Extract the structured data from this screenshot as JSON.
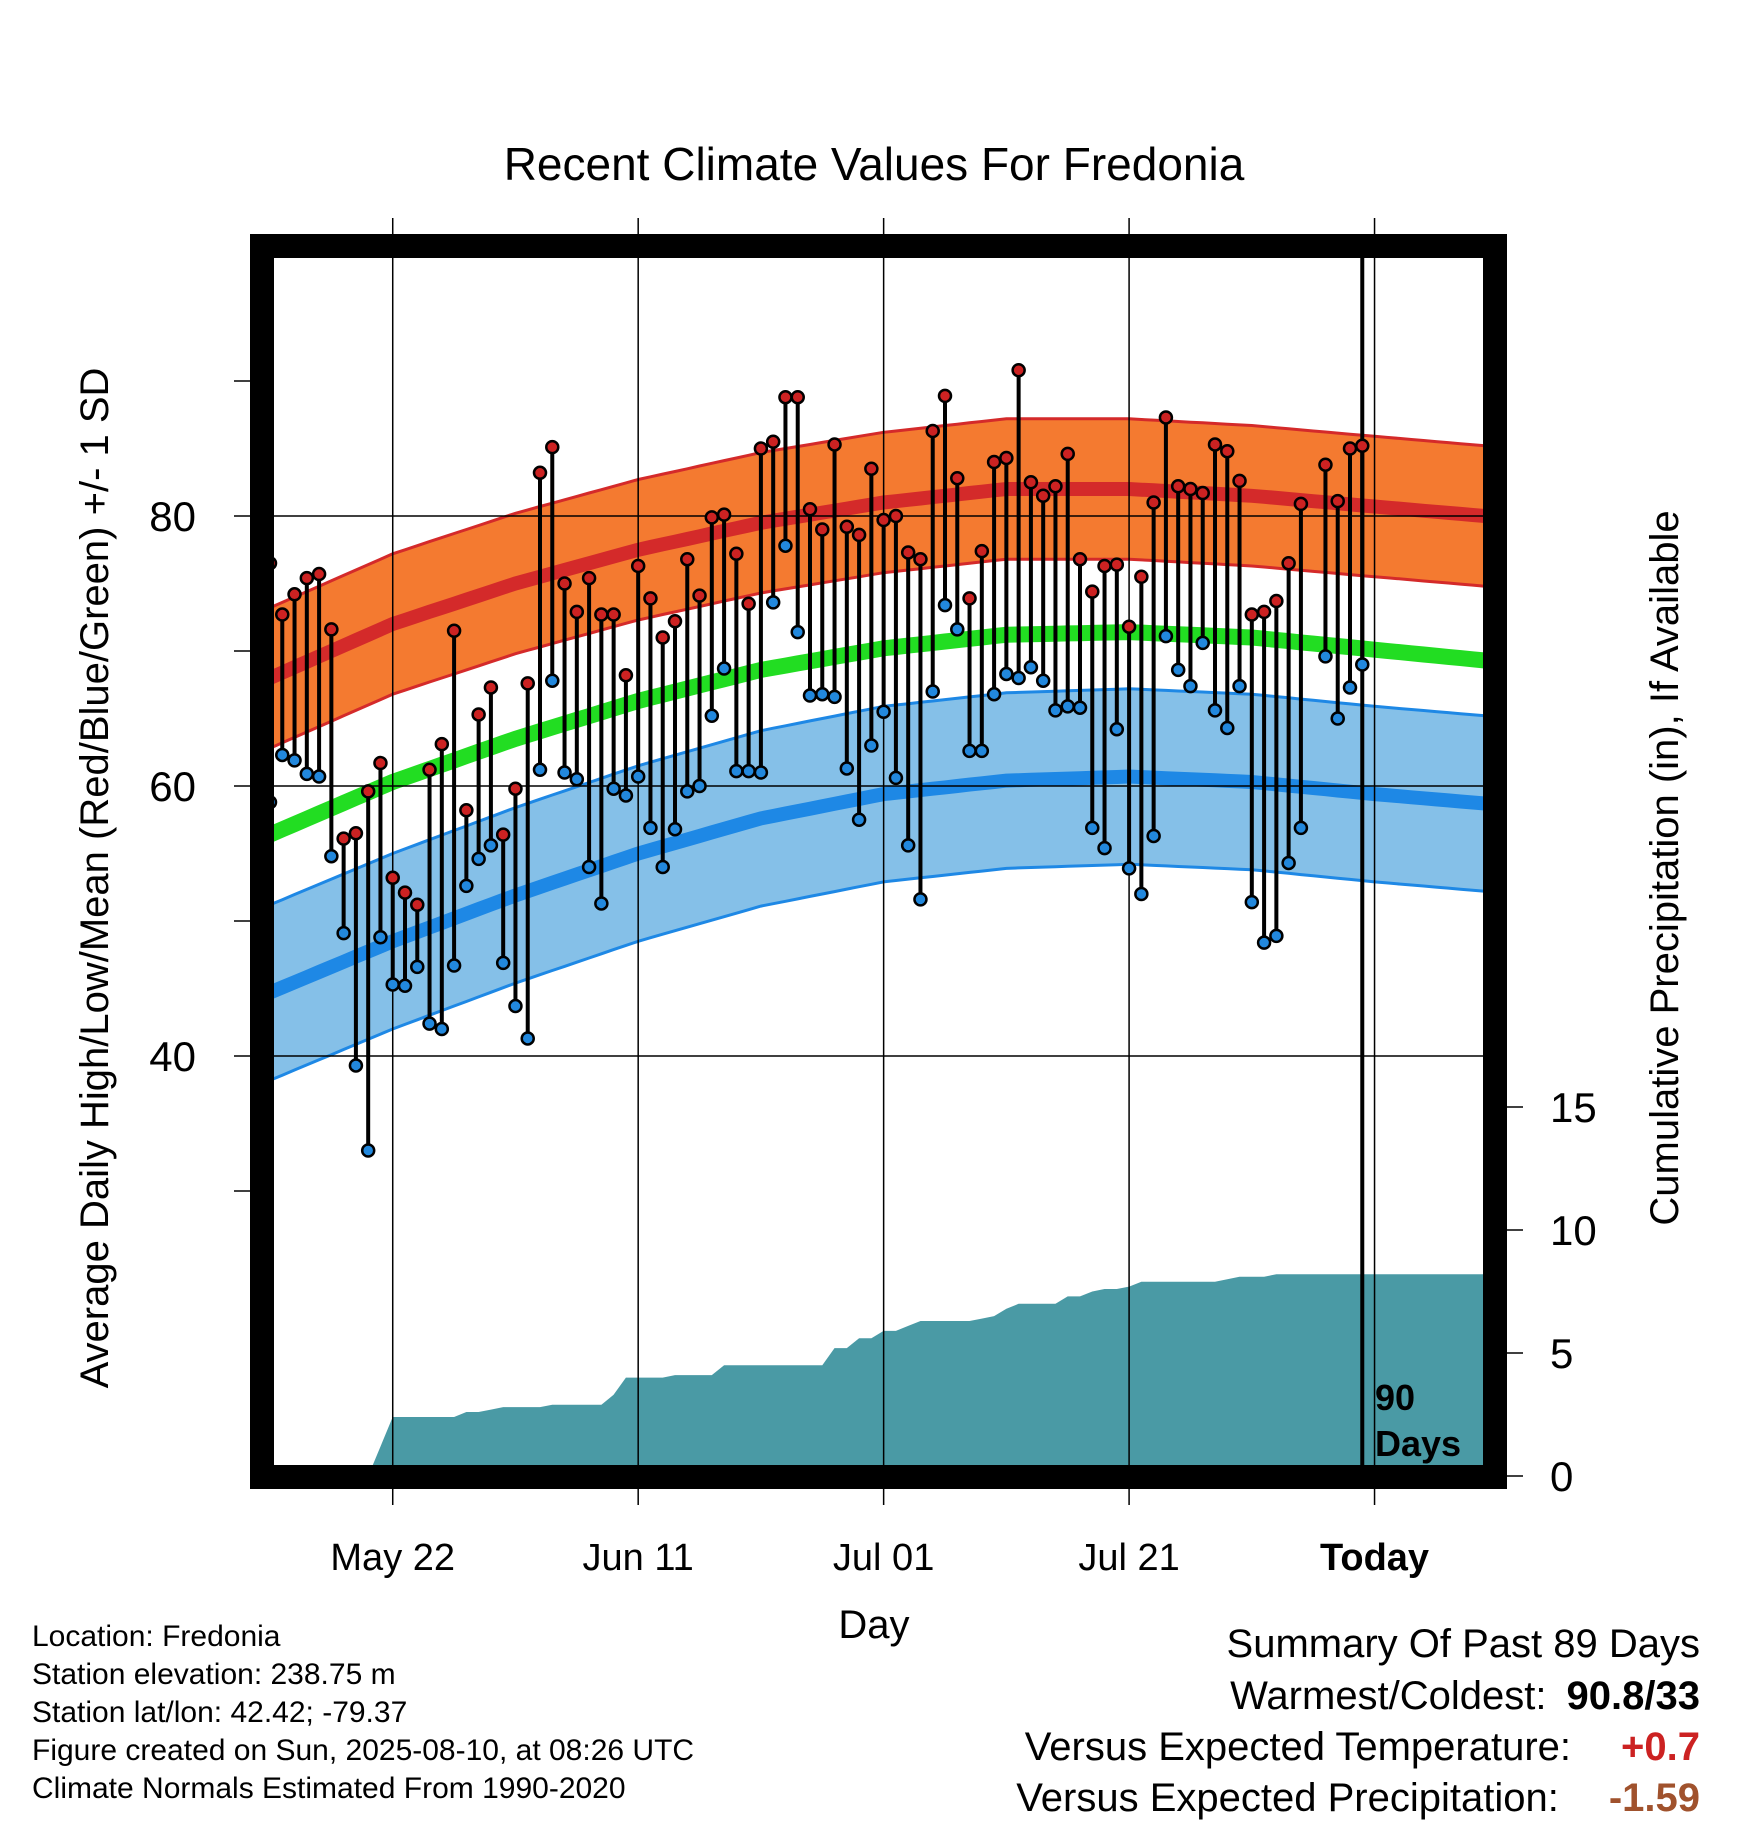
{
  "title": "Recent Climate Values For Fredonia",
  "y_left_label": "Average Daily High/Low/Mean (Red/Blue/Green) +/- 1 SD",
  "y_right_label": "Cumulative Precipitation (in), If Available",
  "x_label": "Day",
  "today_marker": {
    "line1": "90",
    "line2": "Days"
  },
  "metadata": {
    "location": "Location: Fredonia",
    "elevation": "Station elevation: 238.75 m",
    "latlon": "Station lat/lon: 42.42; -79.37",
    "created": "Figure created on Sun, 2025-08-10, at 08:26 UTC",
    "normals": "Climate Normals Estimated From 1990-2020"
  },
  "summary": {
    "title": "Summary Of Past 89 Days",
    "warm_cold_label": "Warmest/Coldest:",
    "warm_cold_value": "90.8/33",
    "temp_label": "Versus Expected Temperature:",
    "temp_value": "+0.7",
    "precip_label": "Versus Expected Precipitation:",
    "precip_value": "-1.59"
  },
  "colors": {
    "high_band": "#f47a30",
    "high_line": "#d42a2a",
    "low_band": "#85c0e8",
    "low_line": "#1e88e5",
    "mean_line": "#22dd22",
    "precip_fill": "#4a9aa5",
    "high_dot": "#cc2222",
    "low_dot": "#2288dd",
    "temp_value_color": "#cc2222",
    "precip_value_color": "#a0522d"
  },
  "chart_data": {
    "type": "line",
    "x_day_range": [
      1,
      100
    ],
    "today_day": 90,
    "x_ticks": [
      {
        "day": 11,
        "label": "May 22",
        "bold": false
      },
      {
        "day": 31,
        "label": "Jun 11",
        "bold": false
      },
      {
        "day": 51,
        "label": "Jul 01",
        "bold": false
      },
      {
        "day": 71,
        "label": "Jul 21",
        "bold": false
      },
      {
        "day": 91,
        "label": "Today",
        "bold": true
      }
    ],
    "y_left_range": [
      26,
      98
    ],
    "y_left_ticks": [
      40,
      60,
      80
    ],
    "y_left_minor": [
      30,
      50,
      70,
      90
    ],
    "y_right_range": [
      0,
      15
    ],
    "y_right_ticks": [
      0,
      5,
      10,
      15
    ],
    "normals": {
      "days": [
        1,
        11,
        21,
        31,
        41,
        51,
        61,
        71,
        81,
        91,
        100
      ],
      "high": [
        68,
        72,
        75,
        77.5,
        79.5,
        81,
        82,
        82,
        81.5,
        80.7,
        80
      ],
      "high_sd": 5.2,
      "low": [
        44.7,
        48.5,
        51.9,
        55,
        57.6,
        59.4,
        60.4,
        60.7,
        60.3,
        59.4,
        58.7
      ],
      "low_sd": 6.5,
      "mean": [
        56.4,
        60.3,
        63.5,
        66.3,
        68.6,
        70.2,
        71.2,
        71.4,
        71,
        70.1,
        69.3
      ]
    },
    "series": [
      {
        "name": "High",
        "values": [
          76.5,
          72.7,
          74.2,
          75.4,
          75.7,
          71.6,
          56.1,
          56.5,
          59.6,
          61.7,
          53.2,
          52.1,
          51.2,
          61.2,
          63.1,
          71.5,
          58.2,
          65.3,
          67.3,
          56.4,
          59.8,
          67.6,
          83.2,
          85.1,
          75,
          72.9,
          75.4,
          72.7,
          72.7,
          68.2,
          76.3,
          73.9,
          71,
          72.2,
          76.8,
          74.1,
          79.9,
          80.1,
          77.2,
          73.5,
          85,
          85.5,
          88.8,
          88.8,
          80.5,
          79,
          85.3,
          79.2,
          78.6,
          83.5,
          79.7,
          80,
          77.3,
          76.8,
          86.3,
          88.9,
          82.8,
          73.9,
          77.4,
          84,
          84.3,
          90.8,
          82.5,
          81.5,
          82.2,
          84.6,
          76.8,
          74.4,
          76.3,
          76.4,
          71.8,
          75.5,
          81,
          87.3,
          82.2,
          82,
          81.7,
          85.3,
          84.8,
          82.6,
          72.7,
          72.9,
          73.7,
          76.5,
          80.9,
          null,
          83.8,
          81.1,
          85,
          85.2
        ]
      },
      {
        "name": "Low",
        "values": [
          58.8,
          62.3,
          61.9,
          60.9,
          60.7,
          54.8,
          49.1,
          39.3,
          33,
          48.8,
          45.3,
          45.2,
          46.6,
          42.4,
          42,
          46.7,
          52.6,
          54.6,
          55.6,
          46.9,
          43.7,
          41.3,
          61.2,
          67.8,
          61,
          60.5,
          54,
          51.3,
          59.8,
          59.3,
          60.7,
          56.9,
          54,
          56.8,
          59.6,
          60,
          65.2,
          68.7,
          61.1,
          61.1,
          61,
          73.6,
          77.8,
          71.4,
          66.7,
          66.8,
          66.6,
          61.3,
          57.5,
          63,
          65.5,
          60.6,
          55.6,
          51.6,
          67,
          73.4,
          71.6,
          62.6,
          62.6,
          66.8,
          68.3,
          68,
          68.8,
          67.8,
          65.6,
          65.9,
          65.8,
          56.9,
          55.4,
          64.2,
          53.9,
          52,
          56.3,
          71.1,
          68.6,
          67.4,
          70.6,
          65.6,
          64.3,
          67.4,
          51.4,
          48.4,
          48.9,
          54.3,
          56.9,
          null,
          69.6,
          65,
          67.3,
          69
        ]
      },
      {
        "name": "Cumulative Precipitation",
        "values": [
          0,
          0,
          0,
          0,
          0,
          0,
          0,
          0,
          0,
          1.2,
          2.4,
          2.4,
          2.4,
          2.4,
          2.4,
          2.4,
          2.6,
          2.6,
          2.7,
          2.8,
          2.8,
          2.8,
          2.8,
          2.9,
          2.9,
          2.9,
          2.9,
          2.9,
          3.3,
          4,
          4,
          4,
          4,
          4.1,
          4.1,
          4.1,
          4.1,
          4.5,
          4.5,
          4.5,
          4.5,
          4.5,
          4.5,
          4.5,
          4.5,
          4.5,
          5.2,
          5.2,
          5.6,
          5.6,
          5.9,
          5.9,
          6.1,
          6.3,
          6.3,
          6.3,
          6.3,
          6.3,
          6.4,
          6.5,
          6.8,
          7,
          7,
          7,
          7,
          7.3,
          7.3,
          7.5,
          7.6,
          7.6,
          7.7,
          7.9,
          7.9,
          7.9,
          7.9,
          7.9,
          7.9,
          7.9,
          8,
          8.1,
          8.1,
          8.1,
          8.2,
          8.2,
          8.2,
          8.2,
          8.2,
          8.2,
          8.2,
          8.2
        ]
      }
    ]
  }
}
